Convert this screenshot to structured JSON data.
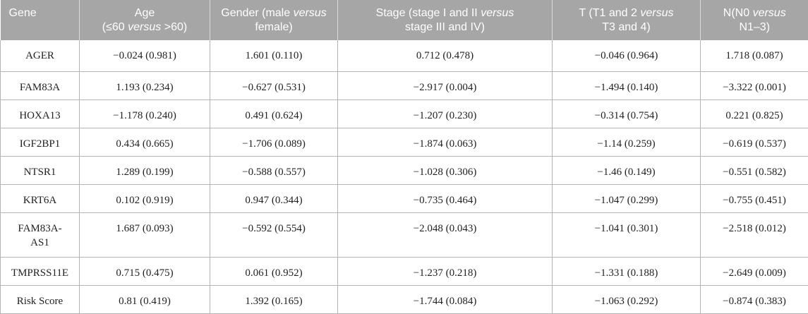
{
  "table": {
    "headers": [
      {
        "parts": [
          {
            "t": "Gene",
            "i": false
          }
        ]
      },
      {
        "parts": [
          {
            "t": "Age",
            "i": false
          },
          {
            "br": true
          },
          {
            "t": "(≤60 ",
            "i": false
          },
          {
            "t": "versus",
            "i": true
          },
          {
            "t": " >60)",
            "i": false
          }
        ]
      },
      {
        "parts": [
          {
            "t": "Gender (male ",
            "i": false
          },
          {
            "t": "versus",
            "i": true
          },
          {
            "br": true
          },
          {
            "t": "female)",
            "i": false
          }
        ]
      },
      {
        "parts": [
          {
            "t": "Stage (stage I and II ",
            "i": false
          },
          {
            "t": "versus",
            "i": true
          },
          {
            "br": true
          },
          {
            "t": "stage III and IV)",
            "i": false
          }
        ]
      },
      {
        "parts": [
          {
            "t": "T (T1 and 2 ",
            "i": false
          },
          {
            "t": "versus",
            "i": true
          },
          {
            "br": true
          },
          {
            "t": "T3 and 4)",
            "i": false
          }
        ]
      },
      {
        "parts": [
          {
            "t": "N(N0 ",
            "i": false
          },
          {
            "t": "versus",
            "i": true
          },
          {
            "br": true
          },
          {
            "t": "N1–3)",
            "i": false
          }
        ]
      }
    ],
    "rows": [
      [
        "AGER",
        "−0.024 (0.981)",
        "1.601 (0.110)",
        "0.712 (0.478)",
        "−0.046 (0.964)",
        "1.718 (0.087)"
      ],
      [
        "FAM83A",
        "1.193 (0.234)",
        "−0.627 (0.531)",
        "−2.917 (0.004)",
        "−1.494 (0.140)",
        "−3.322 (0.001)"
      ],
      [
        "HOXA13",
        "−1.178 (0.240)",
        "0.491 (0.624)",
        "−1.207 (0.230)",
        "−0.314 (0.754)",
        "0.221 (0.825)"
      ],
      [
        "IGF2BP1",
        "0.434 (0.665)",
        "−1.706 (0.089)",
        "−1.874 (0.063)",
        "−1.14 (0.259)",
        "−0.619 (0.537)"
      ],
      [
        "NTSR1",
        "1.289 (0.199)",
        "−0.588 (0.557)",
        "−1.028 (0.306)",
        "−1.46 (0.149)",
        "−0.551 (0.582)"
      ],
      [
        "KRT6A",
        "0.102 (0.919)",
        "0.947 (0.344)",
        "−0.735 (0.464)",
        "−1.047 (0.299)",
        "−0.755 (0.451)"
      ],
      [
        "FAM83A-AS1",
        "1.687 (0.093)",
        "−0.592 (0.554)",
        "−2.048 (0.043)",
        "−1.041 (0.301)",
        "−2.518 (0.012)"
      ],
      [
        "TMPRSS11E",
        "0.715 (0.475)",
        "0.061 (0.952)",
        "−1.237 (0.218)",
        "−1.331 (0.188)",
        "−2.649 (0.009)"
      ],
      [
        "Risk Score",
        "0.81 (0.419)",
        "1.392 (0.165)",
        "−1.744 (0.084)",
        "−1.063 (0.292)",
        "−0.874 (0.383)"
      ]
    ],
    "colors": {
      "header_bg": "#a6a6a6",
      "header_text": "#ffffff",
      "border": "#b4b4b4"
    }
  }
}
